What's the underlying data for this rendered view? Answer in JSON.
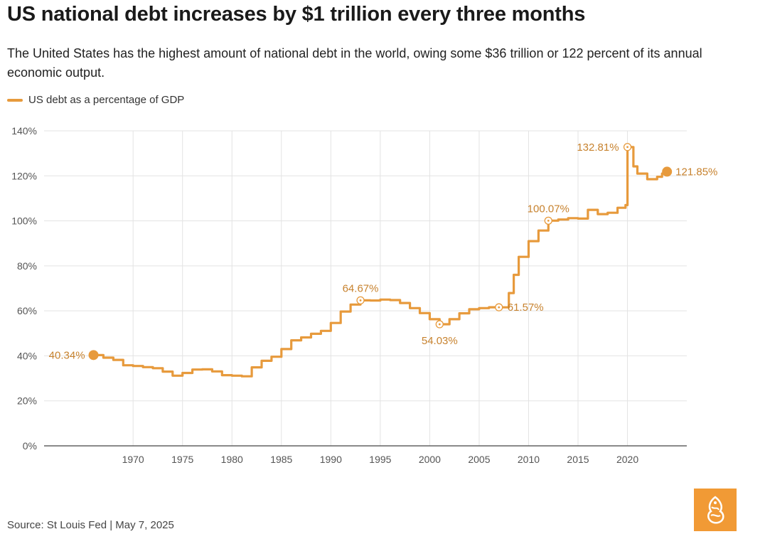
{
  "title": "US national debt increases by $1 trillion every three months",
  "subtitle": "The United States has the highest amount of national debt in the world, owing some $36 trillion or 122 percent of its annual economic output.",
  "source": "Source: St Louis Fed | May 7, 2025",
  "logo_icon": "al-jazeera-logo-icon",
  "colors": {
    "line": "#e79a3c",
    "label": "#c7822e",
    "grid": "#e3e3e3",
    "axis": "#444444",
    "tick": "#555555",
    "logo_bg": "#f19a35"
  },
  "chart_data": {
    "type": "line",
    "title": "US national debt increases by $1 trillion every three months",
    "xlabel": "",
    "ylabel": "",
    "xlim": [
      1961,
      2026
    ],
    "ylim": [
      0,
      140
    ],
    "grid": true,
    "legend_position": "top-left",
    "x_ticks": [
      1970,
      1975,
      1980,
      1985,
      1990,
      1995,
      2000,
      2005,
      2010,
      2015,
      2020
    ],
    "x_tick_labels": [
      "1970",
      "1975",
      "1980",
      "1985",
      "1990",
      "1995",
      "2000",
      "2005",
      "2010",
      "2015",
      "2020"
    ],
    "y_ticks": [
      0,
      20,
      40,
      60,
      80,
      100,
      120,
      140
    ],
    "y_tick_labels": [
      "0%",
      "20%",
      "40%",
      "60%",
      "80%",
      "100%",
      "120%",
      "140%"
    ],
    "series": [
      {
        "name": "US debt as a percentage of GDP",
        "points": [
          [
            1966.0,
            40.34
          ],
          [
            1967.0,
            39.2
          ],
          [
            1968.0,
            38.2
          ],
          [
            1969.0,
            35.8
          ],
          [
            1970.0,
            35.5
          ],
          [
            1971.0,
            35.0
          ],
          [
            1972.0,
            34.5
          ],
          [
            1973.0,
            33.0
          ],
          [
            1974.0,
            31.2
          ],
          [
            1975.0,
            32.4
          ],
          [
            1976.0,
            33.9
          ],
          [
            1977.0,
            34.0
          ],
          [
            1978.0,
            33.1
          ],
          [
            1979.0,
            31.4
          ],
          [
            1980.0,
            31.2
          ],
          [
            1981.0,
            30.9
          ],
          [
            1982.0,
            34.9
          ],
          [
            1983.0,
            37.8
          ],
          [
            1984.0,
            39.6
          ],
          [
            1985.0,
            43.0
          ],
          [
            1986.0,
            46.9
          ],
          [
            1987.0,
            48.2
          ],
          [
            1988.0,
            49.8
          ],
          [
            1989.0,
            51.1
          ],
          [
            1990.0,
            54.6
          ],
          [
            1991.0,
            59.7
          ],
          [
            1992.0,
            62.8
          ],
          [
            1993.0,
            64.67
          ],
          [
            1994.0,
            64.6
          ],
          [
            1995.0,
            65.0
          ],
          [
            1996.0,
            64.8
          ],
          [
            1997.0,
            63.5
          ],
          [
            1998.0,
            61.2
          ],
          [
            1999.0,
            59.0
          ],
          [
            2000.0,
            56.3
          ],
          [
            2001.0,
            54.03
          ],
          [
            2002.0,
            56.3
          ],
          [
            2003.0,
            58.9
          ],
          [
            2004.0,
            60.7
          ],
          [
            2005.0,
            61.2
          ],
          [
            2006.0,
            61.6
          ],
          [
            2007.0,
            61.57
          ],
          [
            2008.0,
            67.9
          ],
          [
            2008.5,
            76.0
          ],
          [
            2009.0,
            84.0
          ],
          [
            2010.0,
            91.0
          ],
          [
            2011.0,
            95.7
          ],
          [
            2012.0,
            100.07
          ],
          [
            2013.0,
            100.6
          ],
          [
            2014.0,
            101.2
          ],
          [
            2015.0,
            101.0
          ],
          [
            2016.0,
            104.9
          ],
          [
            2017.0,
            103.0
          ],
          [
            2018.0,
            103.6
          ],
          [
            2019.0,
            105.8
          ],
          [
            2019.8,
            107.0
          ],
          [
            2020.0,
            132.81
          ],
          [
            2020.6,
            124.2
          ],
          [
            2021.0,
            121.0
          ],
          [
            2022.0,
            118.5
          ],
          [
            2023.0,
            119.6
          ],
          [
            2023.5,
            121.0
          ],
          [
            2024.0,
            121.85
          ]
        ]
      }
    ],
    "annotations": [
      {
        "x": 1966.0,
        "y": 40.34,
        "label": "40.34%",
        "marker": "filled",
        "anchor": "left"
      },
      {
        "x": 1993.0,
        "y": 64.67,
        "label": "64.67%",
        "marker": "open",
        "anchor": "top"
      },
      {
        "x": 2001.0,
        "y": 54.03,
        "label": "54.03%",
        "marker": "open",
        "anchor": "bottom"
      },
      {
        "x": 2007.0,
        "y": 61.57,
        "label": "61.57%",
        "marker": "open",
        "anchor": "right"
      },
      {
        "x": 2012.0,
        "y": 100.07,
        "label": "100.07%",
        "marker": "open",
        "anchor": "top"
      },
      {
        "x": 2020.0,
        "y": 132.81,
        "label": "132.81%",
        "marker": "open",
        "anchor": "left"
      },
      {
        "x": 2024.0,
        "y": 121.85,
        "label": "121.85%",
        "marker": "filled",
        "anchor": "right"
      }
    ]
  }
}
